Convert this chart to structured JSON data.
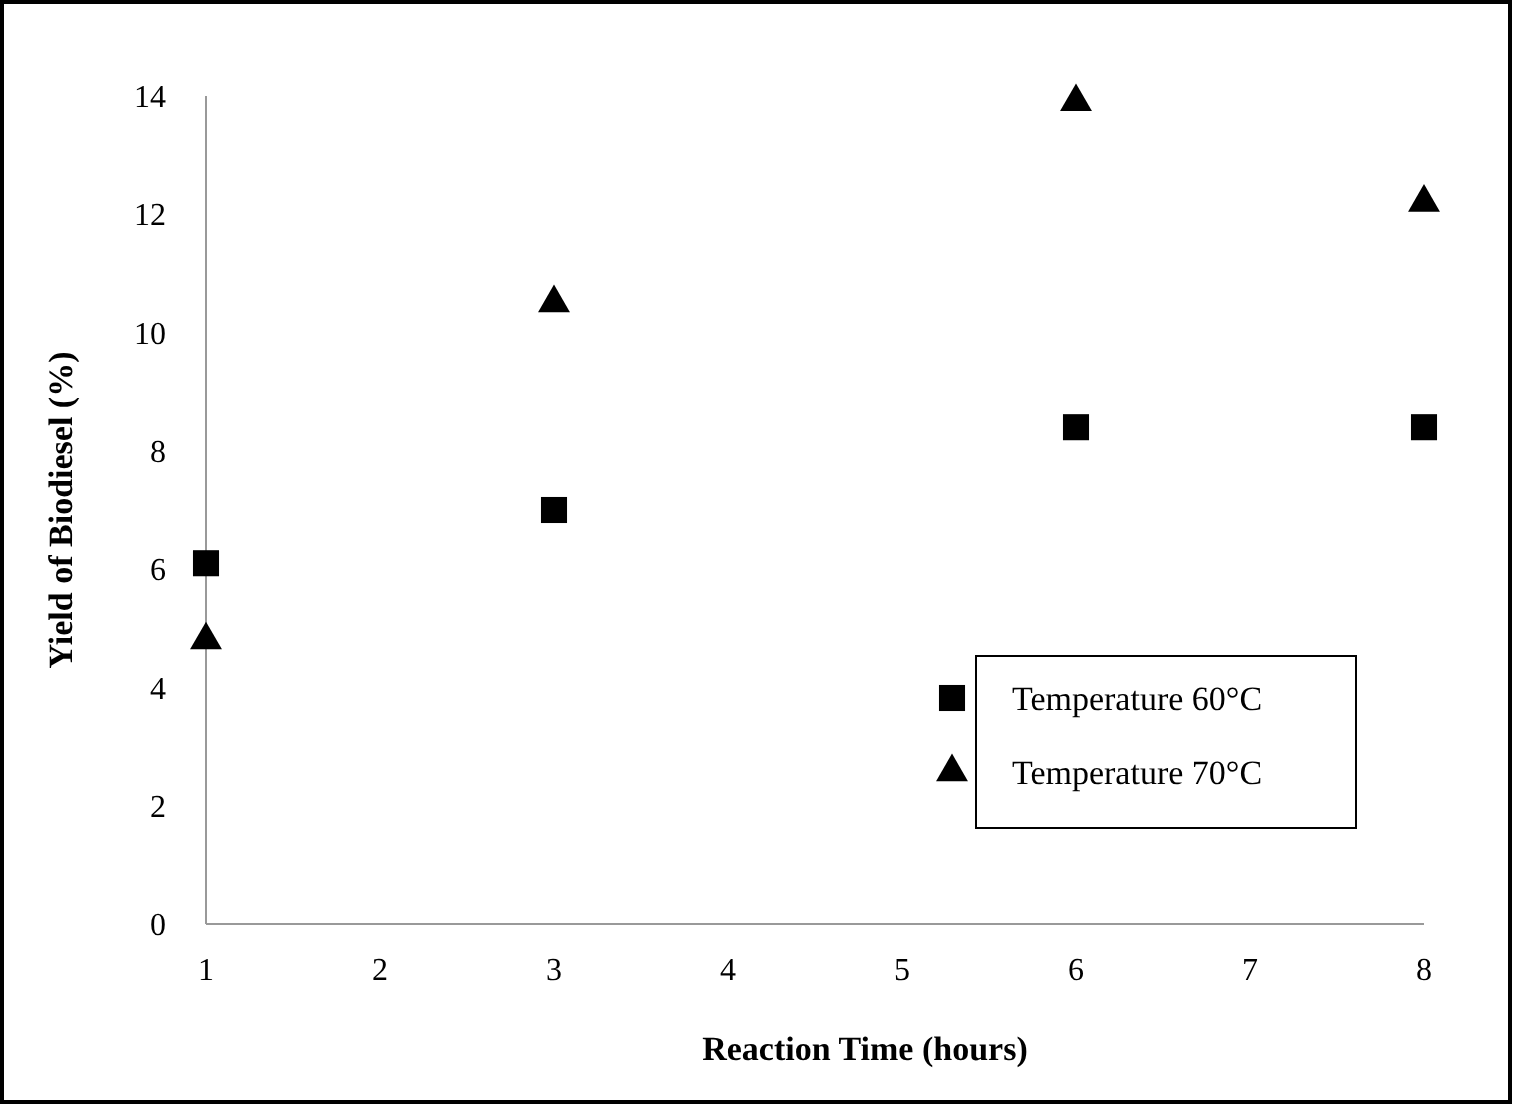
{
  "chart_data": {
    "type": "scatter",
    "xlabel": "Reaction Time (hours)",
    "ylabel": "Yield of Biodiesel (%)",
    "x": [
      1,
      3,
      6,
      8
    ],
    "series": [
      {
        "name": "Temperature 60°C",
        "color": "#000000",
        "marker": "square",
        "values": [
          6.1,
          7.0,
          8.4,
          8.4
        ]
      },
      {
        "name": "Temperature 70°C",
        "color": "#000000",
        "marker": "triangle",
        "values": [
          4.8,
          10.5,
          13.9,
          12.2
        ]
      }
    ],
    "xlim": [
      1,
      8
    ],
    "xticks": [
      1,
      2,
      3,
      4,
      5,
      6,
      7,
      8
    ],
    "ylim": [
      0,
      14
    ],
    "yticks": [
      0,
      2,
      4,
      6,
      8,
      10,
      12,
      14
    ],
    "grid": false,
    "legend": "bottom right"
  }
}
